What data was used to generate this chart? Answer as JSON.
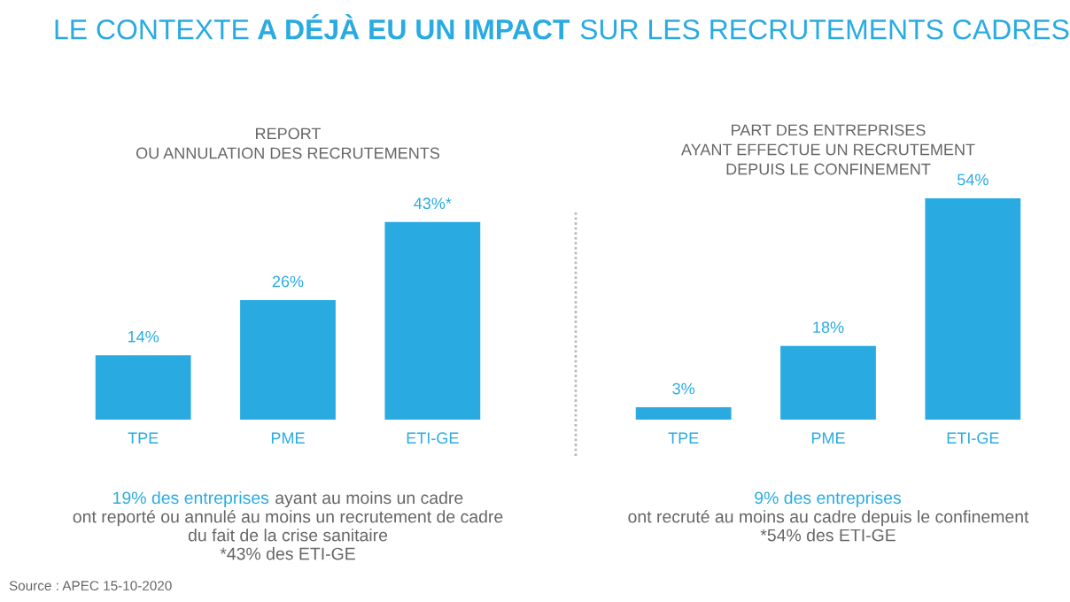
{
  "chart_data": [
    {
      "type": "bar",
      "title": "REPORT\nOU ANNULATION DES RECRUTEMENTS",
      "categories": [
        "TPE",
        "PME",
        "ETI-GE"
      ],
      "values": [
        14,
        26,
        43
      ],
      "value_labels": [
        "14%",
        "26%",
        "43%*"
      ],
      "color": "#29abe2",
      "annotations": [
        "LE CONTEXTE ",
        "A DÉJÀ EU UN IMPACT",
        " SUR LES RECRUTEMENTS CADRES",
        "19% des entreprises",
        " ayant au moins un cadre",
        "ont reporté ou annulé au moins un recrutement de cadre\ndu fait de la crise sanitaire\n*43% des ETI-GE",
        "Source : APEC 15-10-2020"
      ]
    },
    {
      "type": "bar",
      "title": "PART DES ENTREPRISES\nAYANT EFFECTUE UN RECRUTEMENT\nDEPUIS LE CONFINEMENT",
      "categories": [
        "TPE",
        "PME",
        "ETI-GE"
      ],
      "values": [
        3,
        18,
        54
      ],
      "value_labels": [
        "3%",
        "18%",
        "54%"
      ],
      "color": "#29abe2",
      "annotations": [
        "9% des entreprises",
        "ont recruté au moins au cadre depuis le confinement\n*54% des ETI-GE"
      ]
    }
  ]
}
